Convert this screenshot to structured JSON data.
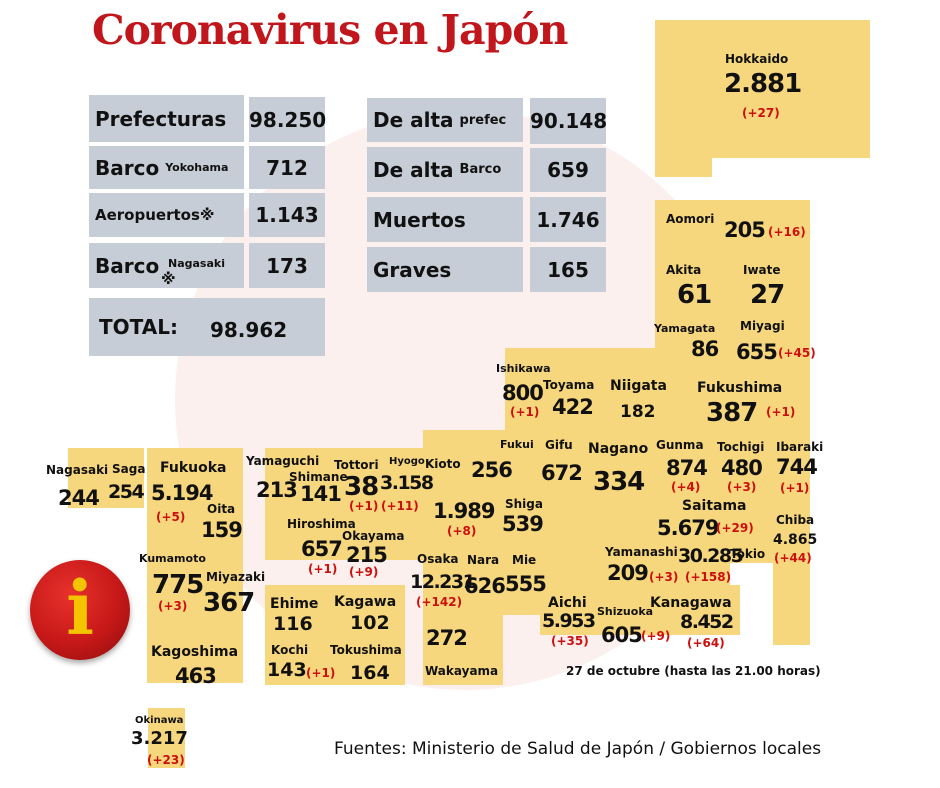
{
  "title": "Coronavirus en Japón",
  "summary": {
    "prefecturas": {
      "label": "Prefecturas",
      "value": "98.250"
    },
    "barco_yokohama": {
      "label": "Barco",
      "sub": "Yokohama",
      "value": "712"
    },
    "aeropuertos": {
      "label": "Aeropuertos※",
      "value": "1.143"
    },
    "barco_nagasaki": {
      "label": "Barco",
      "mark": "※",
      "sub": "Nagasaki",
      "value": "173"
    },
    "total": {
      "label": "TOTAL:",
      "value": "98.962"
    },
    "de_alta_prefec": {
      "label": "De alta",
      "sub": "prefec",
      "value": "90.148"
    },
    "de_alta_barco": {
      "label": "De alta",
      "sub": "Barco",
      "value": "659"
    },
    "muertos": {
      "label": "Muertos",
      "value": "1.746"
    },
    "graves": {
      "label": "Graves",
      "value": "165"
    }
  },
  "prefectures": {
    "hokkaido": {
      "name": "Hokkaido",
      "value": "2.881",
      "delta": "(+27)"
    },
    "aomori": {
      "name": "Aomori",
      "value": "205",
      "delta": "(+16)"
    },
    "akita": {
      "name": "Akita",
      "value": "61"
    },
    "iwate": {
      "name": "Iwate",
      "value": "27"
    },
    "yamagata": {
      "name": "Yamagata",
      "value": "86"
    },
    "miyagi": {
      "name": "Miyagi",
      "value": "655",
      "delta": "(+45)"
    },
    "ishikawa": {
      "name": "Ishikawa",
      "value": "800",
      "delta": "(+1)"
    },
    "toyama": {
      "name": "Toyama",
      "value": "422"
    },
    "niigata": {
      "name": "Niigata",
      "value": "182"
    },
    "fukushima": {
      "name": "Fukushima",
      "value": "387",
      "delta": "(+1)"
    },
    "fukui": {
      "name": "Fukui",
      "value": "256"
    },
    "gifu": {
      "name": "Gifu",
      "value": "672"
    },
    "nagano": {
      "name": "Nagano",
      "value": "334"
    },
    "gunma": {
      "name": "Gunma",
      "value": "874",
      "delta": "(+4)"
    },
    "tochigi": {
      "name": "Tochigi",
      "value": "480",
      "delta": "(+3)"
    },
    "ibaraki": {
      "name": "Ibaraki",
      "value": "744",
      "delta": "(+1)"
    },
    "saitama": {
      "name": "Saitama",
      "value": "5.679",
      "delta": "(+29)"
    },
    "chiba": {
      "name": "Chiba",
      "value": "4.865",
      "delta": "(+44)"
    },
    "yamanashi": {
      "name": "Yamanashi",
      "value": "209",
      "delta": "(+3)"
    },
    "tokio": {
      "name": "Tokio",
      "value": "30.285",
      "delta": "(+158)"
    },
    "kanagawa": {
      "name": "Kanagawa",
      "value": "8.452",
      "delta": "(+64)"
    },
    "shizuoka": {
      "name": "Shizuoka",
      "value": "605",
      "delta": "(+9)"
    },
    "aichi": {
      "name": "Aichi",
      "value": "5.953",
      "delta": "(+35)"
    },
    "mie": {
      "name": "Mie",
      "value": "555"
    },
    "shiga": {
      "name": "Shiga",
      "value": "539"
    },
    "kioto": {
      "name": "Kioto",
      "value": "1.989",
      "delta": "(+8)"
    },
    "nara": {
      "name": "Nara",
      "value": "626"
    },
    "osaka": {
      "name": "Osaka",
      "value": "12.231",
      "delta": "(+142)"
    },
    "hyogo": {
      "name": "Hyogo",
      "value": "3.158",
      "delta": "(+11)"
    },
    "wakayama": {
      "name": "Wakayama",
      "value": "272"
    },
    "tottori": {
      "name": "Tottori",
      "value": "38",
      "delta": "(+1)"
    },
    "shimane": {
      "name": "Shimane",
      "value": "141"
    },
    "okayama": {
      "name": "Okayama",
      "value": "215",
      "delta": "(+9)"
    },
    "hiroshima": {
      "name": "Hiroshima",
      "value": "657",
      "delta": "(+1)"
    },
    "yamaguchi": {
      "name": "Yamaguchi",
      "value": "213"
    },
    "ehime": {
      "name": "Ehime",
      "value": "116"
    },
    "kagawa": {
      "name": "Kagawa",
      "value": "102"
    },
    "kochi": {
      "name": "Kochi",
      "value": "143",
      "delta": "(+1)"
    },
    "tokushima": {
      "name": "Tokushima",
      "value": "164"
    },
    "nagasaki": {
      "name": "Nagasaki",
      "value": "244"
    },
    "saga": {
      "name": "Saga",
      "value": "254"
    },
    "fukuoka": {
      "name": "Fukuoka",
      "value": "5.194",
      "delta": "(+5)"
    },
    "oita": {
      "name": "Oita",
      "value": "159"
    },
    "kumamoto": {
      "name": "Kumamoto",
      "value": "775",
      "delta": "(+3)"
    },
    "miyazaki": {
      "name": "Miyazaki",
      "value": "367"
    },
    "kagoshima": {
      "name": "Kagoshima",
      "value": "463"
    },
    "okinawa": {
      "name": "Okinawa",
      "value": "3.217",
      "delta": "(+23)"
    }
  },
  "info_icon": {
    "glyph": "i"
  },
  "date_note": "27 de octubre  (hasta las 21.00 horas)",
  "sources": "Fuentes: Ministerio de Salud de Japón / Gobiernos locales",
  "colors": {
    "title": "#c0161c",
    "prefecture_fill": "#f7d77e",
    "summary_fill": "#c6cdd6",
    "delta": "#cc1010"
  }
}
